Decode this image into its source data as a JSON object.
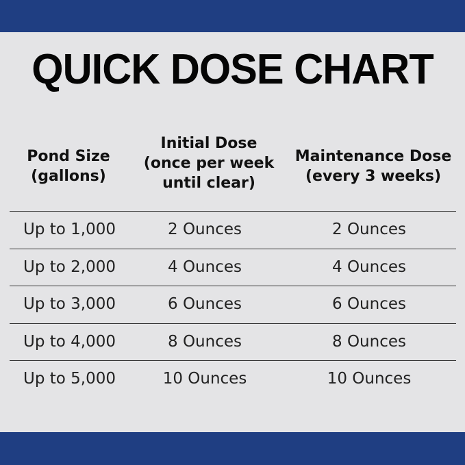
{
  "title": "QUICK DOSE CHART",
  "headers": [
    "Pond Size (gallons)",
    "Initial Dose (once per week until clear)",
    "Maintenance Dose (every 3 weeks)"
  ],
  "header_lines": [
    [
      "Pond Size",
      "(gallons)"
    ],
    [
      "Initial Dose",
      "(once per week",
      "until clear)"
    ],
    [
      "Maintenance Dose",
      "(every 3 weeks)"
    ]
  ],
  "rows": [
    [
      "Up to 1,000",
      "2 Ounces",
      "2 Ounces"
    ],
    [
      "Up to 2,000",
      "4 Ounces",
      "4 Ounces"
    ],
    [
      "Up to 3,000",
      "6 Ounces",
      "6 Ounces"
    ],
    [
      "Up to 4,000",
      "8 Ounces",
      "8 Ounces"
    ],
    [
      "Up to 5,000",
      "10 Ounces",
      "10 Ounces"
    ]
  ],
  "colors": {
    "band": "#1f3e82"
  }
}
